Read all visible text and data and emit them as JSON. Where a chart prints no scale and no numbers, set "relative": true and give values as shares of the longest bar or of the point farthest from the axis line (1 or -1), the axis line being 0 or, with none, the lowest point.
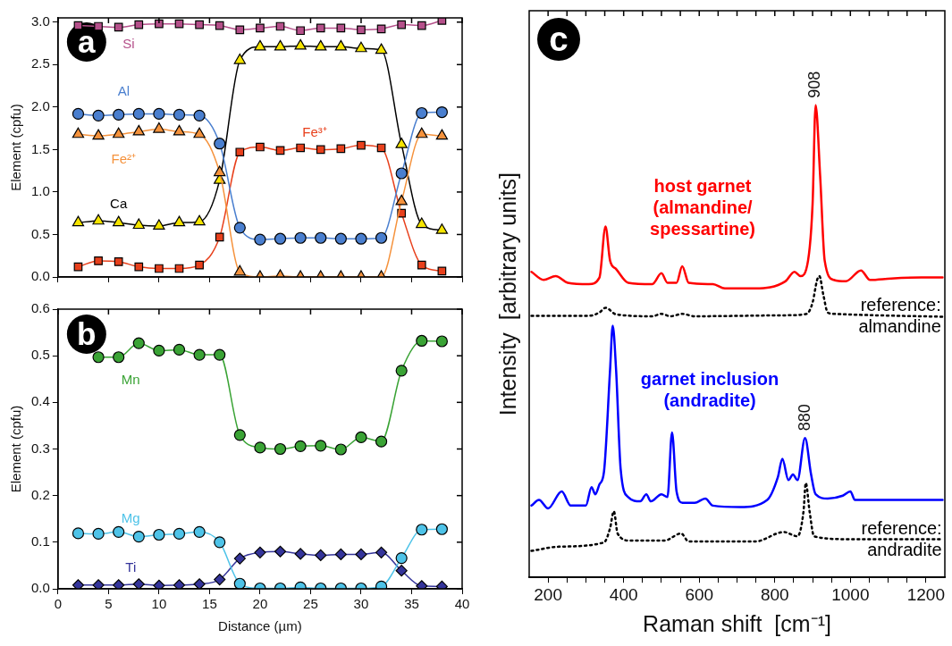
{
  "chart_data": [
    {
      "type": "line",
      "title": "a",
      "ylabel": "Element (cpfu)",
      "xlim": [
        0,
        40
      ],
      "xticks": [
        0,
        5,
        10,
        15,
        20,
        25,
        30,
        35,
        40
      ],
      "ylim": [
        0,
        3.05
      ],
      "yticks": [
        {
          "value": 0,
          "label": "0.0"
        },
        {
          "value": 0.5,
          "label": "0.5"
        },
        {
          "value": 1,
          "label": "1.0"
        },
        {
          "value": 1.5,
          "label": "1.5"
        },
        {
          "value": 2,
          "label": "2.0"
        },
        {
          "value": 2.5,
          "label": "2.5"
        },
        {
          "value": 3,
          "label": "3.0"
        }
      ],
      "tick_labels": "y",
      "grid": false,
      "x": [
        2,
        4,
        6,
        8,
        10,
        12,
        14,
        16,
        18,
        20,
        22,
        24,
        26,
        28,
        30,
        32,
        34,
        36,
        38
      ],
      "series": [
        {
          "name": "Si",
          "color": "#b5508a",
          "marker": "square",
          "values": [
            2.96,
            2.95,
            2.94,
            2.97,
            2.98,
            2.98,
            2.97,
            2.96,
            2.91,
            2.93,
            2.95,
            2.9,
            2.93,
            2.93,
            2.91,
            2.92,
            2.97,
            2.96,
            3.02
          ]
        },
        {
          "name": "Al",
          "color": "#4a7fcf",
          "marker": "circle",
          "values": [
            1.92,
            1.9,
            1.91,
            1.92,
            1.92,
            1.91,
            1.9,
            1.57,
            0.58,
            0.44,
            0.45,
            0.46,
            0.46,
            0.45,
            0.45,
            0.46,
            1.22,
            1.93,
            1.94
          ]
        },
        {
          "name": "Fe²⁺",
          "color": "#f5923c",
          "marker": "triangle",
          "values": [
            1.68,
            1.66,
            1.68,
            1.71,
            1.74,
            1.71,
            1.68,
            1.23,
            0.06,
            0.0,
            0.01,
            0.0,
            0.0,
            0.0,
            0.0,
            0.0,
            0.89,
            1.68,
            1.66
          ]
        },
        {
          "name": "Ca",
          "color": "#000000",
          "colors": [
            "#f5e400",
            "#f5e400",
            "#f5e400",
            "#f5e400",
            "#f5e400",
            "#f5e400",
            "#f5e400",
            "#f5e400",
            "#f5e400",
            "#f5e400",
            "#f5e400",
            "#f5e400",
            "#f5e400",
            "#f5e400",
            "#f5e400",
            "#f5e400",
            "#f5e400",
            "#f5e400",
            "#f5e400"
          ],
          "marker": "triangle",
          "values": [
            0.64,
            0.66,
            0.64,
            0.61,
            0.6,
            0.64,
            0.65,
            1.14,
            2.55,
            2.71,
            2.71,
            2.72,
            2.71,
            2.71,
            2.69,
            2.67,
            1.56,
            0.62,
            0.55
          ]
        },
        {
          "name": "Fe³⁺",
          "color": "#e8401c",
          "marker": "square",
          "values": [
            0.12,
            0.19,
            0.18,
            0.12,
            0.1,
            0.1,
            0.14,
            0.47,
            1.47,
            1.53,
            1.49,
            1.52,
            1.5,
            1.51,
            1.55,
            1.52,
            0.75,
            0.14,
            0.07
          ]
        }
      ]
    },
    {
      "type": "line",
      "title": "b",
      "xlabel": "Distance (µm)",
      "ylabel": "Element (cpfu)",
      "xlim": [
        0,
        40
      ],
      "xticks": [
        0,
        5,
        10,
        15,
        20,
        25,
        30,
        35,
        40
      ],
      "ylim": [
        0,
        0.6
      ],
      "yticks": [
        {
          "value": 0,
          "label": "0.0"
        },
        0.1,
        0.2,
        0.3,
        0.4,
        0.5,
        0.6
      ],
      "grid": false,
      "x": [
        2,
        4,
        6,
        8,
        10,
        12,
        14,
        16,
        18,
        20,
        22,
        24,
        26,
        28,
        30,
        32,
        34,
        36,
        38
      ],
      "series": [
        {
          "name": "Mn",
          "color": "#3aa335",
          "marker": "circle",
          "values": [
            null,
            0.497,
            0.497,
            0.527,
            0.511,
            0.513,
            0.502,
            0.502,
            0.33,
            0.303,
            0.3,
            0.306,
            0.307,
            0.299,
            0.325,
            0.316,
            0.468,
            0.532,
            0.531
          ]
        },
        {
          "name": "Mg",
          "color": "#4ec3e8",
          "marker": "circle",
          "values": [
            0.119,
            0.118,
            0.122,
            0.112,
            0.116,
            0.118,
            0.122,
            0.1,
            0.011,
            0.001,
            0.001,
            0.003,
            0.001,
            0.001,
            0.001,
            0.005,
            0.066,
            0.127,
            0.128
          ]
        },
        {
          "name": "Ti",
          "color": "#34349a",
          "marker": "diamond",
          "values": [
            0.008,
            0.008,
            0.008,
            0.01,
            0.007,
            0.008,
            0.01,
            0.02,
            0.065,
            0.078,
            0.08,
            0.075,
            0.072,
            0.074,
            0.074,
            0.078,
            0.039,
            0.006,
            0.005
          ]
        }
      ]
    },
    {
      "type": "line",
      "title": "c",
      "xlabel": "Raman shift  [cm⁻¹]",
      "ylabel": "Intensity  [arbitrary units]",
      "relative": true,
      "marker": "none",
      "grid": false,
      "xlim": [
        150,
        1250
      ],
      "xticks": [
        {
          "value": 200,
          "label": "200"
        },
        {
          "value": 250,
          "label": null
        },
        {
          "value": 300,
          "label": null
        },
        {
          "value": 350,
          "label": null
        },
        {
          "value": 400,
          "label": "400"
        },
        {
          "value": 450,
          "label": null
        },
        {
          "value": 500,
          "label": null
        },
        {
          "value": 550,
          "label": null
        },
        {
          "value": 600,
          "label": "600"
        },
        {
          "value": 650,
          "label": null
        },
        {
          "value": 700,
          "label": null
        },
        {
          "value": 750,
          "label": null
        },
        {
          "value": 800,
          "label": "800"
        },
        {
          "value": 850,
          "label": null
        },
        {
          "value": 900,
          "label": null
        },
        {
          "value": 950,
          "label": null
        },
        {
          "value": 1000,
          "label": "1000"
        },
        {
          "value": 1050,
          "label": null
        },
        {
          "value": 1100,
          "label": null
        },
        {
          "value": 1150,
          "label": null
        },
        {
          "value": 1200,
          "label": "1200"
        }
      ],
      "annotations": [
        {
          "text": "908",
          "x": 908,
          "y": 1
        },
        {
          "text": "880",
          "x": 880,
          "y": 0.295
        }
      ],
      "series": [
        {
          "name": "host garnet\n(almandine/\nspessartine)",
          "color": "#ff0000",
          "x": [
            156,
            188,
            220,
            252,
            308,
            336,
            352,
            364,
            380,
            412,
            476,
            500,
            516,
            540,
            555,
            572,
            636,
            668,
            748,
            828,
            852,
            868,
            888,
            900,
            908,
            920,
            932,
            956,
            988,
            1028,
            1052,
            1108,
            1188,
            1244
          ],
          "values": [
            0.647,
            0.63,
            0.638,
            0.624,
            0.621,
            0.635,
            0.743,
            0.671,
            0.653,
            0.624,
            0.621,
            0.644,
            0.624,
            0.624,
            0.659,
            0.624,
            0.621,
            0.612,
            0.612,
            0.627,
            0.647,
            0.638,
            0.671,
            0.791,
            1,
            0.85,
            0.671,
            0.63,
            0.627,
            0.65,
            0.63,
            0.633,
            0.635,
            0.635
          ]
        },
        {
          "name": "reference:\nalmandine",
          "color": "#000000",
          "line_style": "dotted",
          "x": [
            156,
            308,
            336,
            352,
            380,
            476,
            500,
            524,
            555,
            588,
            828,
            884,
            900,
            912,
            918,
            928,
            940,
            956,
            1068,
            1244
          ],
          "values": [
            0.554,
            0.554,
            0.561,
            0.571,
            0.557,
            0.553,
            0.558,
            0.553,
            0.558,
            0.553,
            0.555,
            0.558,
            0.582,
            0.63,
            0.638,
            0.6,
            0.561,
            0.558,
            0.555,
            0.552
          ]
        },
        {
          "name": "garnet inclusion\n(andradite)",
          "color": "#0000ff",
          "x": [
            156,
            176,
            200,
            236,
            260,
            300,
            315,
            325,
            336,
            348,
            364,
            371,
            380,
            392,
            412,
            444,
            460,
            472,
            500,
            516,
            528,
            540,
            556,
            588,
            616,
            636,
            708,
            780,
            808,
            820,
            836,
            848,
            860,
            880,
            896,
            908,
            940,
            980,
            1000,
            1012,
            1068,
            1148,
            1244
          ],
          "values": [
            0.152,
            0.164,
            0.146,
            0.182,
            0.152,
            0.152,
            0.191,
            0.176,
            0.197,
            0.224,
            0.439,
            0.533,
            0.439,
            0.23,
            0.17,
            0.161,
            0.176,
            0.161,
            0.176,
            0.17,
            0.307,
            0.182,
            0.158,
            0.158,
            0.167,
            0.152,
            0.149,
            0.164,
            0.212,
            0.251,
            0.206,
            0.218,
            0.206,
            0.295,
            0.218,
            0.176,
            0.167,
            0.173,
            0.182,
            0.164,
            0.164,
            0.164,
            0.164
          ]
        },
        {
          "name": "reference:\nandradite",
          "color": "#000000",
          "line_style": "dotted",
          "x": [
            156,
            228,
            348,
            364,
            374,
            384,
            416,
            508,
            552,
            572,
            748,
            824,
            860,
            876,
            882,
            892,
            904,
            988,
            1244
          ],
          "values": [
            0.056,
            0.065,
            0.074,
            0.104,
            0.14,
            0.093,
            0.078,
            0.078,
            0.093,
            0.076,
            0.076,
            0.096,
            0.087,
            0.14,
            0.2,
            0.14,
            0.087,
            0.081,
            0.081
          ]
        }
      ]
    }
  ]
}
